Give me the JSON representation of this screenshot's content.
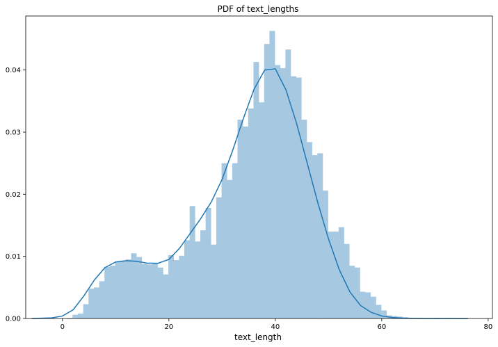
{
  "chart_data": {
    "type": "bar",
    "title": "PDF of text_lengths",
    "xlabel": "text_length",
    "ylabel": "",
    "xlim": [
      -6.9,
      80.8
    ],
    "ylim": [
      0,
      0.0487
    ],
    "xticks": [
      0,
      20,
      40,
      60,
      80
    ],
    "yticks": [
      0.0,
      0.01,
      0.02,
      0.03,
      0.04
    ],
    "xtick_labels": [
      "0",
      "20",
      "40",
      "60",
      "80"
    ],
    "ytick_labels": [
      "0.00",
      "0.01",
      "0.02",
      "0.03",
      "0.04"
    ],
    "grid": false,
    "histogram": {
      "bin_width": 1.0,
      "bin_start": 0.9,
      "values": [
        0.0001,
        0.0006,
        0.0008,
        0.0023,
        0.0048,
        0.005,
        0.006,
        0.0083,
        0.0085,
        0.0092,
        0.0093,
        0.0095,
        0.0105,
        0.0099,
        0.0088,
        0.0087,
        0.0089,
        0.0082,
        0.0071,
        0.0102,
        0.0094,
        0.0101,
        0.0126,
        0.0181,
        0.0124,
        0.0142,
        0.0178,
        0.0119,
        0.0195,
        0.025,
        0.0223,
        0.025,
        0.032,
        0.0309,
        0.0338,
        0.0413,
        0.0348,
        0.0442,
        0.0463,
        0.0408,
        0.0403,
        0.0433,
        0.039,
        0.0388,
        0.032,
        0.0284,
        0.0263,
        0.0266,
        0.0206,
        0.014,
        0.014,
        0.0147,
        0.012,
        0.0085,
        0.0082,
        0.0043,
        0.0042,
        0.0035,
        0.0022,
        0.0013,
        0.0005,
        0.0004,
        0.0003,
        0.0002,
        0.0001,
        0.0001,
        5e-05,
        5e-05,
        5e-05,
        0.0001
      ]
    },
    "kde": {
      "x": [
        -5.8,
        -2,
        0,
        2,
        4,
        6,
        8,
        10,
        12,
        14,
        16,
        18,
        20,
        22,
        24,
        26,
        28,
        30,
        32,
        34,
        36,
        38,
        40,
        42,
        44,
        46,
        48,
        50,
        52,
        54,
        56,
        58,
        60,
        62,
        64,
        66,
        68,
        70,
        72,
        74,
        76.2
      ],
      "y": [
        0.0,
        0.0001,
        0.0004,
        0.0014,
        0.0036,
        0.0062,
        0.0082,
        0.0091,
        0.0093,
        0.0092,
        0.0089,
        0.0089,
        0.0095,
        0.0113,
        0.0137,
        0.0161,
        0.0188,
        0.0224,
        0.0271,
        0.0322,
        0.0369,
        0.04,
        0.0402,
        0.0368,
        0.0314,
        0.025,
        0.0186,
        0.0128,
        0.0079,
        0.0043,
        0.0021,
        0.001,
        0.0004,
        0.00015,
        6e-05,
        3e-05,
        2e-05,
        1e-05,
        1e-05,
        0.0,
        0.0
      ]
    },
    "colors": {
      "bars": "#a6c8e0",
      "kde": "#1f77b4",
      "axes": "#000000"
    }
  }
}
